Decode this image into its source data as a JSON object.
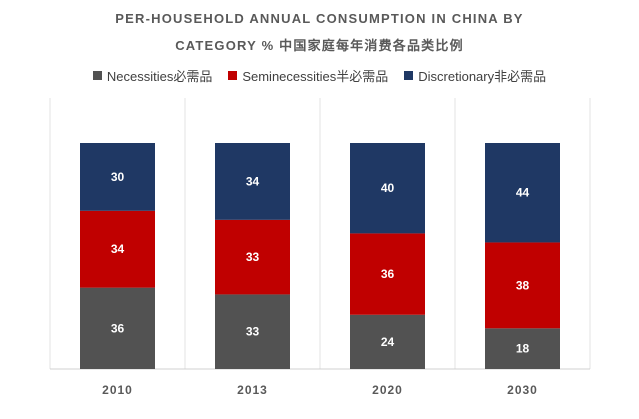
{
  "chart_data": {
    "type": "bar",
    "stacked": true,
    "percent": true,
    "title": "PER-HOUSEHOLD ANNUAL CONSUMPTION IN CHINA BY",
    "title_line2": "CATEGORY % 中国家庭每年消费各品类比例",
    "categories": [
      "2010",
      "2013",
      "2020",
      "2030"
    ],
    "series": [
      {
        "name": "Necessities必需品",
        "color": "#525252",
        "values": [
          36,
          33,
          24,
          18
        ]
      },
      {
        "name": "Seminecessities半必需品",
        "color": "#c00000",
        "values": [
          34,
          33,
          36,
          38
        ]
      },
      {
        "name": "Discretionary非必需品",
        "color": "#1f3864",
        "values": [
          30,
          34,
          40,
          44
        ]
      }
    ],
    "legend_position": "top",
    "grid": false
  }
}
